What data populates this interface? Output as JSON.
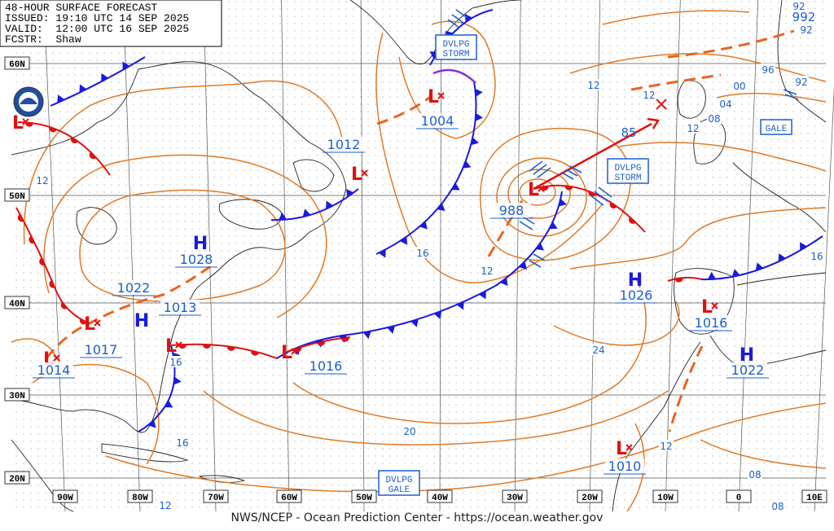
{
  "header": {
    "title": "48-HOUR SURFACE FORECAST",
    "issued": "ISSUED: 19:10 UTC 14 SEP 2025",
    "valid": "VALID:  12:00 UTC 16 SEP 2025",
    "forecaster": "FCSTR:  Shaw"
  },
  "footer": "NWS/NCEP - Ocean Prediction Center - https://ocean.weather.gov",
  "latitude_labels": [
    "60N",
    "50N",
    "40N",
    "30N",
    "20N"
  ],
  "longitude_labels": [
    "90W",
    "80W",
    "70W",
    "60W",
    "50W",
    "40W",
    "30W",
    "20W",
    "10W",
    "0",
    "10E"
  ],
  "systems": [
    {
      "symbol": "L",
      "pressure": "1012"
    },
    {
      "symbol": "L",
      "pressure": "1004"
    },
    {
      "symbol": "L",
      "pressure": "988"
    },
    {
      "symbol": "H",
      "pressure": "1028"
    },
    {
      "symbol": "H",
      "pressure": "1026"
    },
    {
      "symbol": "L",
      "pressure": "1016"
    },
    {
      "symbol": "H",
      "pressure": "1022"
    },
    {
      "symbol": "L",
      "pressure": "1010"
    },
    {
      "symbol": "H",
      "pressure": "1022"
    },
    {
      "symbol": "L",
      "pressure": "1013"
    },
    {
      "symbol": "L",
      "pressure": "1017"
    },
    {
      "symbol": "L",
      "pressure": "1014"
    },
    {
      "symbol": "L",
      "pressure": "1016"
    }
  ],
  "unlabeled_lows": [
    "L"
  ],
  "isobar_labels": [
    "12",
    "12",
    "12",
    "12",
    "12",
    "12",
    "12",
    "16",
    "16",
    "16",
    "16",
    "20",
    "24",
    "08",
    "08",
    "08",
    "00",
    "04",
    "96",
    "92",
    "92",
    "92",
    "992"
  ],
  "warnings": [
    [
      "DVLPG",
      "STORM"
    ],
    [
      "DVLPG",
      "STORM"
    ],
    [
      "DVLPG",
      "GALE"
    ],
    [
      "GALE"
    ]
  ],
  "wind_speed": "85"
}
